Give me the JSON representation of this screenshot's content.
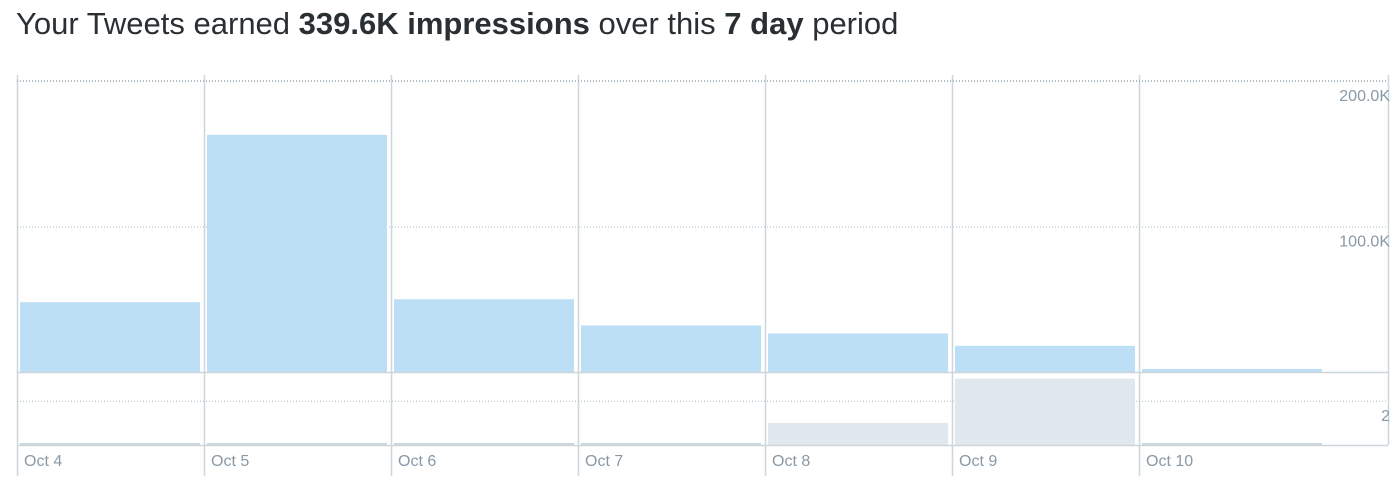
{
  "chart_data": [
    {
      "type": "bar",
      "title_parts": [
        "Your Tweets earned",
        "339.6K impressions",
        "over this",
        "7 day",
        "period"
      ],
      "categories": [
        "Oct 4",
        "Oct 5",
        "Oct 6",
        "Oct 7",
        "Oct 8",
        "Oct 9",
        "Oct 10"
      ],
      "values": [
        48000,
        163000,
        50000,
        32000,
        26500,
        18000,
        2100
      ],
      "color": "#bddff5",
      "ylim": [
        0,
        200000
      ],
      "yticks": [
        {
          "value": 100000,
          "label": "100.0K"
        },
        {
          "value": 200000,
          "label": "200.0K"
        }
      ],
      "grid": true
    },
    {
      "type": "bar",
      "values": [
        0,
        0,
        0,
        0,
        1,
        3,
        0
      ],
      "color": "#e1e8ed",
      "ylim": [
        0,
        3.3
      ],
      "yticks": [
        2
      ],
      "grid": true
    }
  ]
}
